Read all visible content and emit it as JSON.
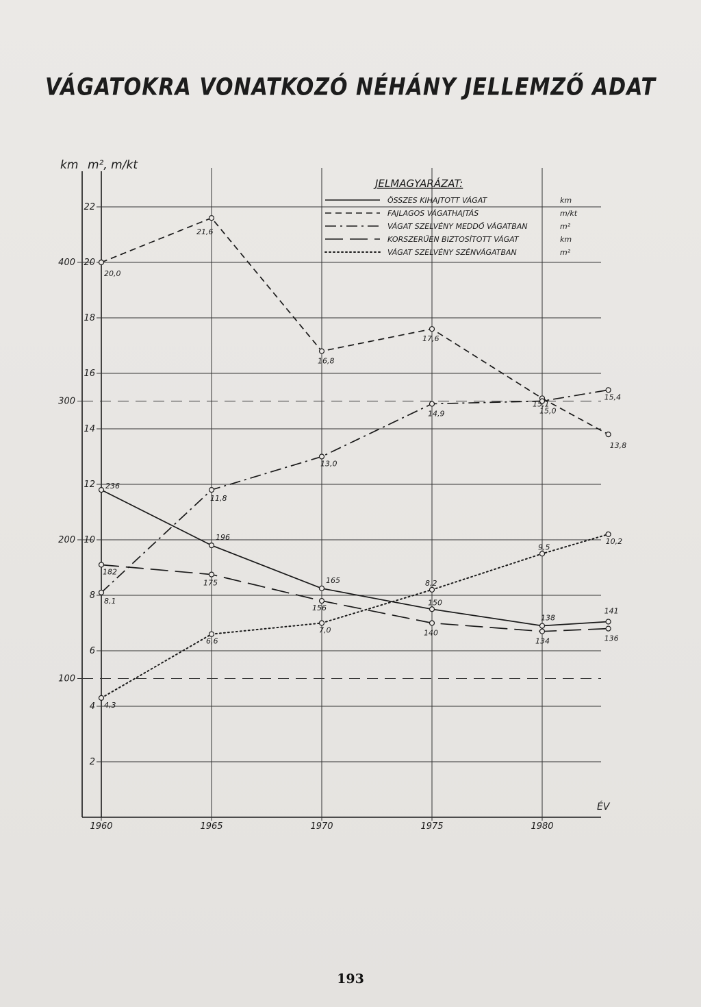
{
  "title": "VÁGATOKRA VONATKOZÓ NÉHÁNY JELLEMZŐ ADAT",
  "page_number": "193",
  "chart_data": {
    "type": "line",
    "x": [
      1960,
      1965,
      1970,
      1975,
      1980,
      1983
    ],
    "xlabel": "ÉV",
    "x_ticks": [
      "1960",
      "1965",
      "1970",
      "1975",
      "1980"
    ],
    "left_axis_label": "km",
    "right_axis_label": "m², m/kt",
    "inner_axis_ticks": [
      "2",
      "4",
      "6",
      "8",
      "10",
      "12",
      "14",
      "16",
      "18",
      "20",
      "22"
    ],
    "outer_axis_ticks": [
      "100",
      "200",
      "300",
      "400"
    ],
    "grid": true,
    "legend": {
      "title": "JELMAGYARÁZAT:",
      "placement": "top-right",
      "entries": [
        {
          "label": "ÖSSZES KIHAJTOTT VÁGAT",
          "unit": "km",
          "style": "solid"
        },
        {
          "label": "FAJLAGOS VÁGATHAJTÁS",
          "unit": "m/kt",
          "style": "dashed"
        },
        {
          "label": "VÁGAT SZELVÉNY MEDDŐ VÁGATBAN",
          "unit": "m²",
          "style": "dashdot"
        },
        {
          "label": "KORSZERŰEN BIZTOSÍTOTT VÁGAT",
          "unit": "km",
          "style": "longdash"
        },
        {
          "label": "VÁGAT SZELVÉNY SZÉNVÁGATBAN",
          "unit": "m²",
          "style": "dotted"
        }
      ]
    },
    "series": [
      {
        "name": "ÖSSZES KIHAJTOTT VÁGAT",
        "axis": "km",
        "style": "solid",
        "values": [
          236,
          196,
          165,
          150,
          138,
          141
        ],
        "labels": [
          "236",
          "196",
          "165",
          "150",
          "138",
          "141"
        ]
      },
      {
        "name": "FAJLAGOS VÁGATHAJTÁS",
        "axis": "m",
        "style": "dashed",
        "values": [
          20.0,
          21.6,
          16.8,
          17.6,
          15.1,
          13.8
        ],
        "labels": [
          "20,0",
          "21,6",
          "16,8",
          "17,6",
          "15,1",
          "13,8"
        ]
      },
      {
        "name": "VÁGAT SZELVÉNY MEDDŐ VÁGATBAN",
        "axis": "m",
        "style": "dashdot",
        "values": [
          8.1,
          11.8,
          13.0,
          14.9,
          15.0,
          15.4
        ],
        "labels": [
          "8,1",
          "11,8",
          "13,0",
          "14,9",
          "15,0",
          "15,4"
        ]
      },
      {
        "name": "KORSZERŰEN BIZTOSÍTOTT VÁGAT",
        "axis": "km",
        "style": "longdash",
        "values": [
          182,
          175,
          156,
          140,
          134,
          136
        ],
        "labels": [
          "182",
          "175",
          "156",
          "140",
          "134",
          "136"
        ]
      },
      {
        "name": "VÁGAT SZELVÉNY SZÉNVÁGATBAN",
        "axis": "m",
        "style": "dotted",
        "values": [
          4.3,
          6.6,
          7.0,
          8.2,
          9.5,
          10.2
        ],
        "labels": [
          "4,3",
          "6,6",
          "7,0",
          "8,2",
          "9,5",
          "10,2"
        ]
      }
    ]
  }
}
